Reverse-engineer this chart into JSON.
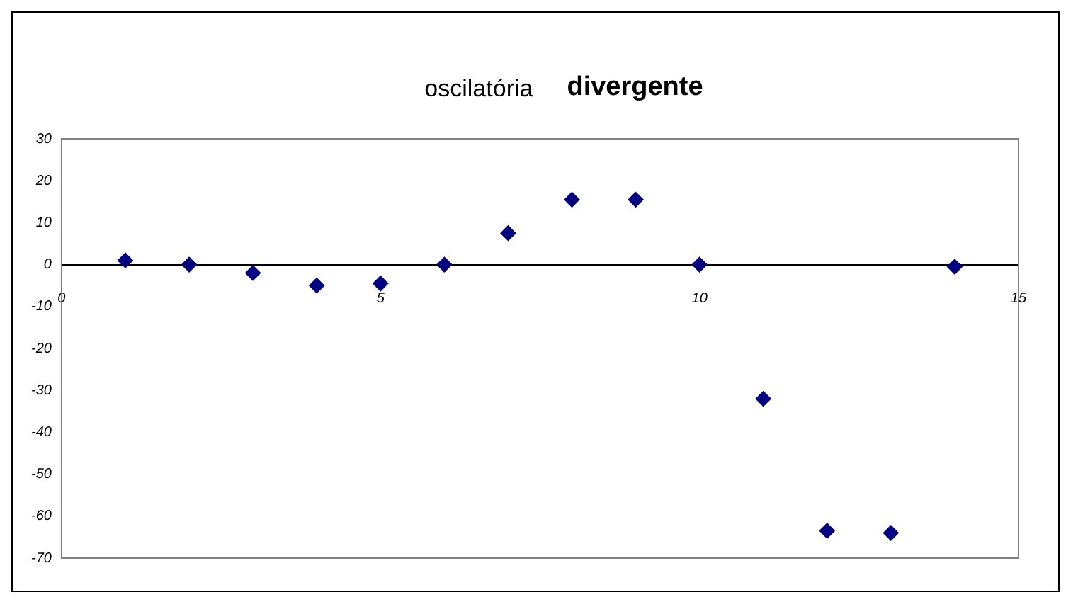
{
  "chart_data": {
    "type": "scatter",
    "title": "oscilatória",
    "subtitle": "divergente",
    "x": [
      1,
      2,
      3,
      4,
      5,
      6,
      7,
      8,
      9,
      10,
      11,
      12,
      13,
      14
    ],
    "series": [
      {
        "color": "#000080",
        "values": [
          1,
          0,
          -2,
          -5,
          -4.5,
          0,
          7.5,
          15.5,
          15.5,
          0,
          -32,
          -63.5,
          -64,
          -0.5
        ]
      }
    ],
    "xlim": [
      0,
      15
    ],
    "xticks": [
      0,
      5,
      10,
      15
    ],
    "ylim": [
      -70,
      30
    ],
    "yticks": [
      30,
      20,
      10,
      0,
      -10,
      -20,
      -30,
      -40,
      -50,
      -60,
      -70
    ],
    "grid": false,
    "legend": false,
    "marker": "diamond"
  }
}
